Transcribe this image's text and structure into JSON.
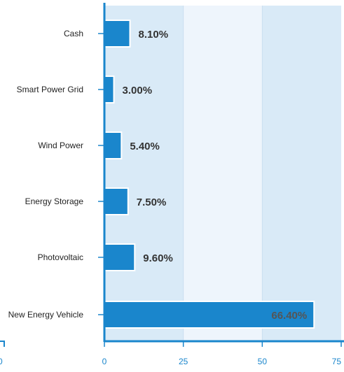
{
  "chart_data": {
    "type": "bar",
    "orientation": "horizontal",
    "categories": [
      "Cash",
      "Smart Power Grid",
      "Wind Power",
      "Energy Storage",
      "Photovoltaic",
      "New Energy Vehicle"
    ],
    "values": [
      8.1,
      3.0,
      5.4,
      7.5,
      9.6,
      66.4
    ],
    "value_labels": [
      "8.10%",
      "3.00%",
      "5.40%",
      "7.50%",
      "9.60%",
      "66.40%"
    ],
    "x_ticks": [
      0,
      25,
      50,
      75
    ],
    "x_tick_labels": [
      "0",
      "25",
      "50",
      "75"
    ],
    "left_partial_tick_label": "0",
    "xlim": [
      0,
      75
    ],
    "title": "",
    "xlabel": "",
    "ylabel": "",
    "colors": {
      "bar": "#1a86cc",
      "bar_edge": "#ffffff",
      "axis": "#1a86cc",
      "band_dark": "#d9eaf7",
      "band_light": "#eef5fc",
      "tick_label": "#1a86cc",
      "category_label": "#222222",
      "value_label_outside": "#333333",
      "value_label_inside": "#555555"
    }
  }
}
